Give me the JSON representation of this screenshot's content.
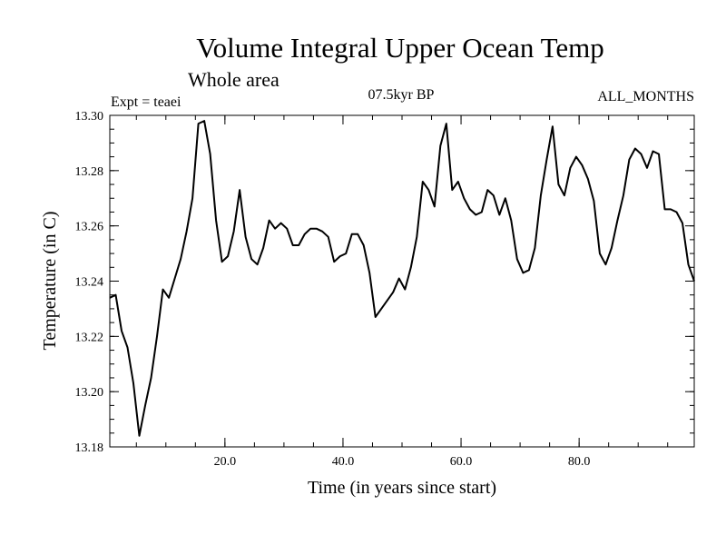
{
  "chart_data": {
    "type": "line",
    "title": "Volume Integral Upper Ocean Temp",
    "subtitle": "Whole area",
    "experiment": "Expt = teaei",
    "period": "07.5kyr BP",
    "months": "ALL_MONTHS",
    "xlabel": "Time (in years since start)",
    "ylabel": "Temperature (in C)",
    "xlim": [
      0.5,
      99.5
    ],
    "ylim": [
      13.18,
      13.3
    ],
    "x_ticks": [
      20,
      40,
      60,
      80
    ],
    "x_tick_labels": [
      "20.0",
      "40.0",
      "60.0",
      "80.0"
    ],
    "y_ticks": [
      13.18,
      13.2,
      13.22,
      13.24,
      13.26,
      13.28,
      13.3
    ],
    "y_tick_labels": [
      "13.18",
      "13.20",
      "13.22",
      "13.24",
      "13.26",
      "13.28",
      "13.30"
    ],
    "grid": false,
    "series": [
      {
        "name": "Temperature",
        "x": [
          0.5,
          1.5,
          2.5,
          3.5,
          4.5,
          5.5,
          6.5,
          7.5,
          8.5,
          9.5,
          10.5,
          11.5,
          12.5,
          13.5,
          14.5,
          15.5,
          16.5,
          17.5,
          18.5,
          19.5,
          20.5,
          21.5,
          22.5,
          23.5,
          24.5,
          25.5,
          26.5,
          27.5,
          28.5,
          29.5,
          30.5,
          31.5,
          32.5,
          33.5,
          34.5,
          35.5,
          36.5,
          37.5,
          38.5,
          39.5,
          40.5,
          41.5,
          42.5,
          43.5,
          44.5,
          45.5,
          46.5,
          47.5,
          48.5,
          49.5,
          50.5,
          51.5,
          52.5,
          53.5,
          54.5,
          55.5,
          56.5,
          57.5,
          58.5,
          59.5,
          60.5,
          61.5,
          62.5,
          63.5,
          64.5,
          65.5,
          66.5,
          67.5,
          68.5,
          69.5,
          70.5,
          71.5,
          72.5,
          73.5,
          74.5,
          75.5,
          76.5,
          77.5,
          78.5,
          79.5,
          80.5,
          81.5,
          82.5,
          83.5,
          84.5,
          85.5,
          86.5,
          87.5,
          88.5,
          89.5,
          90.5,
          91.5,
          92.5,
          93.5,
          94.5,
          95.5,
          96.5,
          97.5,
          98.5,
          99.5
        ],
        "values": [
          13.234,
          13.235,
          13.222,
          13.216,
          13.203,
          13.184,
          13.195,
          13.205,
          13.22,
          13.237,
          13.234,
          13.241,
          13.248,
          13.258,
          13.27,
          13.297,
          13.298,
          13.286,
          13.262,
          13.247,
          13.249,
          13.258,
          13.273,
          13.256,
          13.248,
          13.246,
          13.252,
          13.262,
          13.259,
          13.261,
          13.259,
          13.253,
          13.253,
          13.257,
          13.259,
          13.259,
          13.258,
          13.256,
          13.247,
          13.249,
          13.25,
          13.257,
          13.257,
          13.253,
          13.243,
          13.227,
          13.23,
          13.233,
          13.236,
          13.241,
          13.237,
          13.245,
          13.256,
          13.276,
          13.273,
          13.267,
          13.289,
          13.297,
          13.273,
          13.276,
          13.27,
          13.266,
          13.264,
          13.265,
          13.273,
          13.271,
          13.264,
          13.27,
          13.262,
          13.248,
          13.243,
          13.244,
          13.252,
          13.271,
          13.284,
          13.296,
          13.275,
          13.271,
          13.281,
          13.285,
          13.282,
          13.277,
          13.269,
          13.25,
          13.246,
          13.252,
          13.262,
          13.271,
          13.284,
          13.288,
          13.286,
          13.281,
          13.287,
          13.286,
          13.266,
          13.266,
          13.265,
          13.261,
          13.246,
          13.24
        ]
      }
    ]
  }
}
